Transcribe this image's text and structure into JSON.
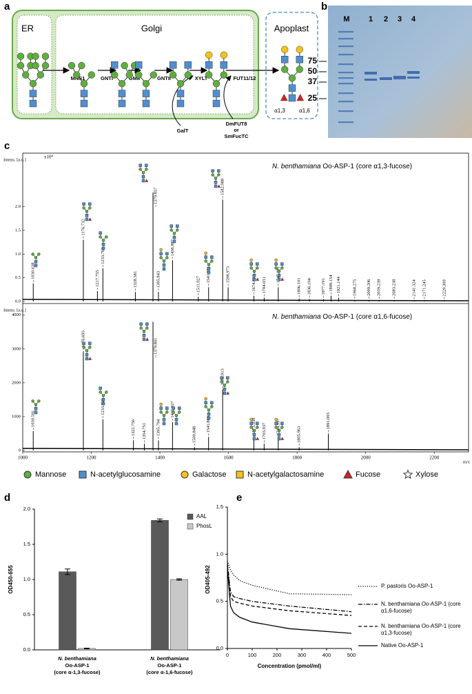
{
  "panel_labels": [
    "a",
    "b",
    "c",
    "d",
    "e"
  ],
  "diagram": {
    "compartments": [
      "ER",
      "Golgi",
      "Apoplast"
    ],
    "enzymes": [
      "MNS1",
      "GNTI",
      "GMII",
      "GNTII",
      "XYLT",
      "FUT11/12"
    ],
    "added_enzymes": [
      "GalT",
      "DmFUT8",
      "or",
      "SmFucTC"
    ],
    "linkages": [
      "α1,3",
      "α1,6"
    ]
  },
  "gel": {
    "lanes": [
      "M",
      "1",
      "2",
      "3",
      "4"
    ],
    "markers": [
      75,
      50,
      37,
      25
    ]
  },
  "glycan_legend": [
    "Mannose",
    "N-acetylglucosamine",
    "Galactose",
    "N-acetylgalactosamine",
    "Fucose",
    "Xylose"
  ],
  "chart_data": [
    {
      "type": "spectrum",
      "title_species": "N. benthamiana",
      "title": "Oo-ASP-1 (core α1,3-fucose)",
      "ylabel": "Intens. [a.u.]",
      "y_scale_label": "x10⁴",
      "color": "#000000",
      "x": [
        1030.638,
        1176.732,
        1217.755,
        1233.763,
        1328.381,
        1379.857,
        1395.843,
        1436.887,
        1511.927,
        1541.951,
        1582.988,
        1598.973,
        1674.031,
        1704.031,
        1745.091,
        1806.101,
        1836.104,
        1877.191,
        1899.154,
        1921.144,
        1968.275,
        2009.206,
        2039.239,
        2083.238,
        2141.324,
        2171.245,
        2229.309
      ],
      "x_labels": [
        "1030.638",
        "1176.732",
        "1217.755",
        "1233.763",
        "1328.381",
        "1379.857",
        "1395.843",
        "1436.887",
        "1511.927",
        "1541.951",
        "1582.988",
        "1598.973",
        "1674.031",
        "1704.031",
        "1745.091",
        "1806.101",
        "1836.104",
        "1877.191",
        "1899.154",
        "1921.144",
        "1968.275",
        "2009.206",
        "2039.239",
        "2083.238",
        "2141.324",
        "2171.245",
        "2229.309"
      ],
      "values": [
        0.38,
        1.3,
        0.22,
        0.7,
        0.2,
        2.3,
        0.2,
        0.87,
        0.1,
        0.3,
        2.15,
        0.3,
        0.12,
        0.08,
        0.3,
        0.06,
        0.05,
        0.05,
        0.12,
        0.08,
        0.03,
        0.03,
        0.03,
        0.03,
        0.02,
        0.02,
        0.02
      ],
      "xlim": [
        1000,
        2300
      ],
      "ylim": [
        0,
        3.1
      ],
      "yticks": [
        {
          "value": 0,
          "label": "0.0"
        },
        0.5,
        {
          "value": 1,
          "label": "1.0"
        },
        1.5,
        {
          "value": 2,
          "label": "2.0"
        }
      ]
    },
    {
      "type": "spectrum",
      "title_species": "N. benthamiana",
      "title": "Oo-ASP-1 (core α1,6-fucose)",
      "ylabel": "Intens. [a.u.]",
      "xlabel": "m/z",
      "color": "#000000",
      "x": [
        1030.591,
        1176.693,
        1233.723,
        1322.756,
        1354.751,
        1379.801,
        1395.794,
        1436.827,
        1500.848,
        1541.86,
        1582.913,
        1673.938,
        1703.937,
        1744.997,
        1805.963,
        1891.093
      ],
      "x_labels": [
        "1030.591",
        "1176.693",
        "1233.723",
        "1322.756",
        "1354.751",
        "1379.801",
        "1395.794",
        "1436.827",
        "1500.848",
        "1541.860",
        "1582.913",
        "1673.938",
        "1703.937",
        "1744.997",
        "1805.963",
        "1891.093"
      ],
      "values": [
        570,
        2930,
        920,
        300,
        200,
        3800,
        300,
        840,
        100,
        400,
        1800,
        350,
        200,
        330,
        100,
        500
      ],
      "xlim": [
        1000,
        2300
      ],
      "ylim": [
        0,
        4300
      ],
      "xticks": [
        1000,
        1200,
        1400,
        1600,
        1800,
        2000,
        2200
      ],
      "yticks": [
        0,
        1000,
        2000,
        3000,
        4000
      ]
    },
    {
      "type": "bar",
      "ylabel": "OD450-655",
      "categories": [
        [
          "N. benthamiana",
          "Oo-ASP-1",
          "(core α-1,3-fucose)"
        ],
        [
          "N. benthamiana",
          "Oo-ASP-1",
          "(core α-1,6-fucose)"
        ]
      ],
      "series": [
        {
          "name": "AAL",
          "color": "#595959",
          "values": [
            1.11,
            1.84
          ],
          "errors": [
            0.04,
            0.02
          ]
        },
        {
          "name": "PhosL",
          "color": "#c8c8c8",
          "values": [
            0.02,
            1.0
          ],
          "errors": [
            0.005,
            0.01
          ]
        }
      ],
      "ylim": [
        0,
        2
      ],
      "yticks": [
        {
          "value": 0,
          "label": "0.0"
        },
        0.5,
        {
          "value": 1,
          "label": "1.0"
        },
        1.5,
        {
          "value": 2,
          "label": "2.0"
        }
      ]
    },
    {
      "type": "line",
      "xlabel": "Concentration (pmol/ml)",
      "ylabel": "OD405-492",
      "x": [
        0,
        12.5,
        25,
        50,
        100,
        250,
        500
      ],
      "series": [
        {
          "name": "P. pastoris Oo-ASP-1",
          "color": "#000000",
          "dash": "1.2,2",
          "values": [
            0.93,
            0.83,
            0.78,
            0.72,
            0.67,
            0.58,
            0.57
          ]
        },
        {
          "name": "N. benthamiana Oo-ASP-1 (core α1,6-fucose)",
          "color": "#000000",
          "dash": "6,2,1.5,2",
          "values": [
            0.9,
            0.6,
            0.55,
            0.53,
            0.5,
            0.45,
            0.39
          ]
        },
        {
          "name": "N. benthamiana Oo-ASP-1 (core α1,3-fucose)",
          "color": "#000000",
          "dash": "5,3",
          "values": [
            0.88,
            0.55,
            0.5,
            0.48,
            0.45,
            0.4,
            0.35
          ]
        },
        {
          "name": "Native Oo-ASP-1",
          "color": "#000000",
          "dash": "none",
          "values": [
            0.85,
            0.45,
            0.38,
            0.33,
            0.28,
            0.21,
            0.16
          ]
        }
      ],
      "xlim": [
        0,
        500
      ],
      "ylim": [
        0,
        1.5
      ],
      "xticks": [
        0,
        100,
        200,
        300,
        400,
        500
      ],
      "yticks": [
        {
          "value": 0,
          "label": "0.0"
        },
        0.5,
        {
          "value": 1,
          "label": "1.0"
        },
        1.5
      ]
    }
  ]
}
